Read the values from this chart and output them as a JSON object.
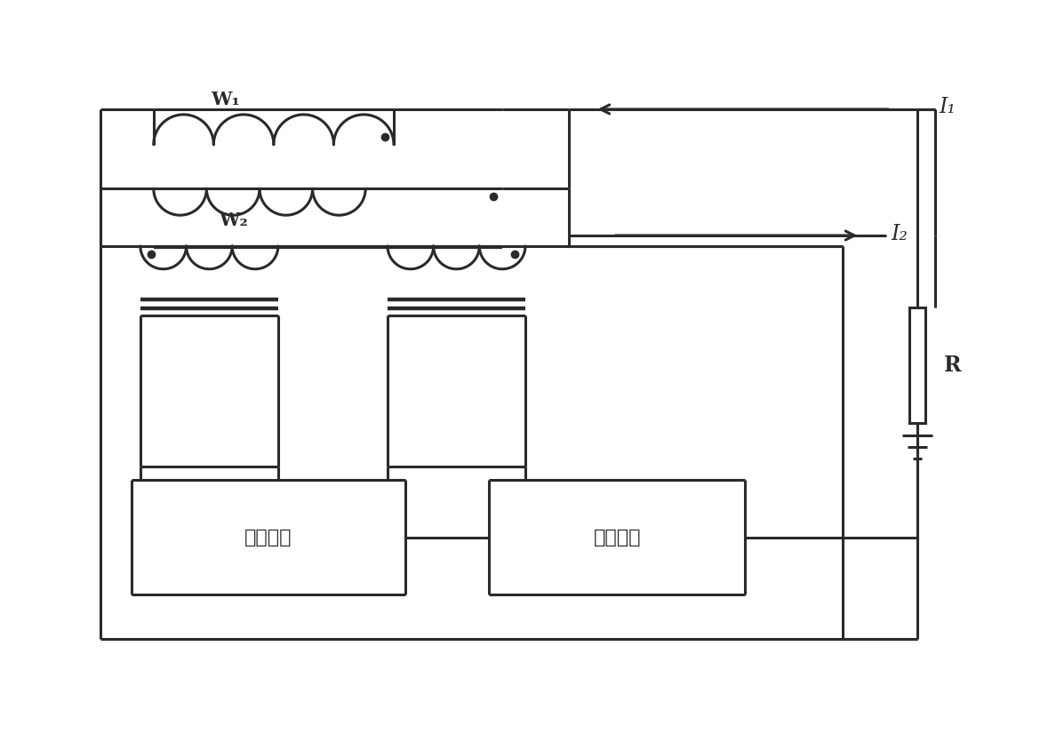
{
  "fig_width": 11.7,
  "fig_height": 8.26,
  "bg_color": "#ffffff",
  "line_color": "#2a2a2a",
  "line_width": 2.2,
  "labels": {
    "W1": "W₁",
    "W2": "W₂",
    "I1": "I₁",
    "I2": "I₂",
    "R": "R",
    "block1": "调制解调",
    "block2": "放大驱动"
  }
}
